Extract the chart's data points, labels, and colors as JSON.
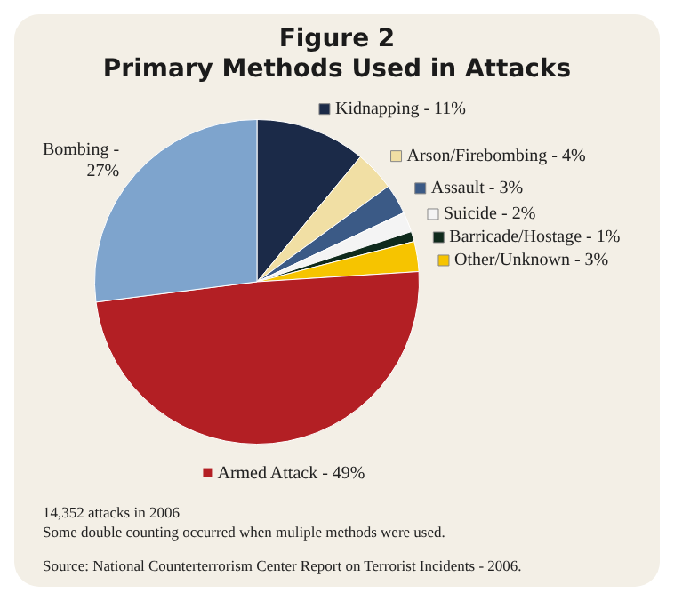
{
  "chart_data": {
    "type": "pie",
    "title": "Figure 2",
    "subtitle": "Primary Methods Used in Attacks",
    "categories": [
      "Kidnapping - 11%",
      "Arson/Firebombing - 4%",
      "Assault - 3%",
      "Suicide - 2%",
      "Barricade/Hostage - 1%",
      "Other/Unknown - 3%",
      "Armed Attack - 49%",
      "Bombing - 27%"
    ],
    "values": [
      11,
      4,
      3,
      2,
      1,
      3,
      49,
      27
    ],
    "colors": [
      "#1b2a48",
      "#f1dfa4",
      "#3b5a86",
      "#f4f4f4",
      "#0f2a1c",
      "#f6c400",
      "#b31f24",
      "#7ea4cd"
    ],
    "legend": "right",
    "annotations": [
      "14,352 attacks in 2006",
      "Some double counting occurred when muliple methods were used.",
      "Source: National Counterterrorism Center Report on Terrorist Incidents - 2006."
    ]
  }
}
